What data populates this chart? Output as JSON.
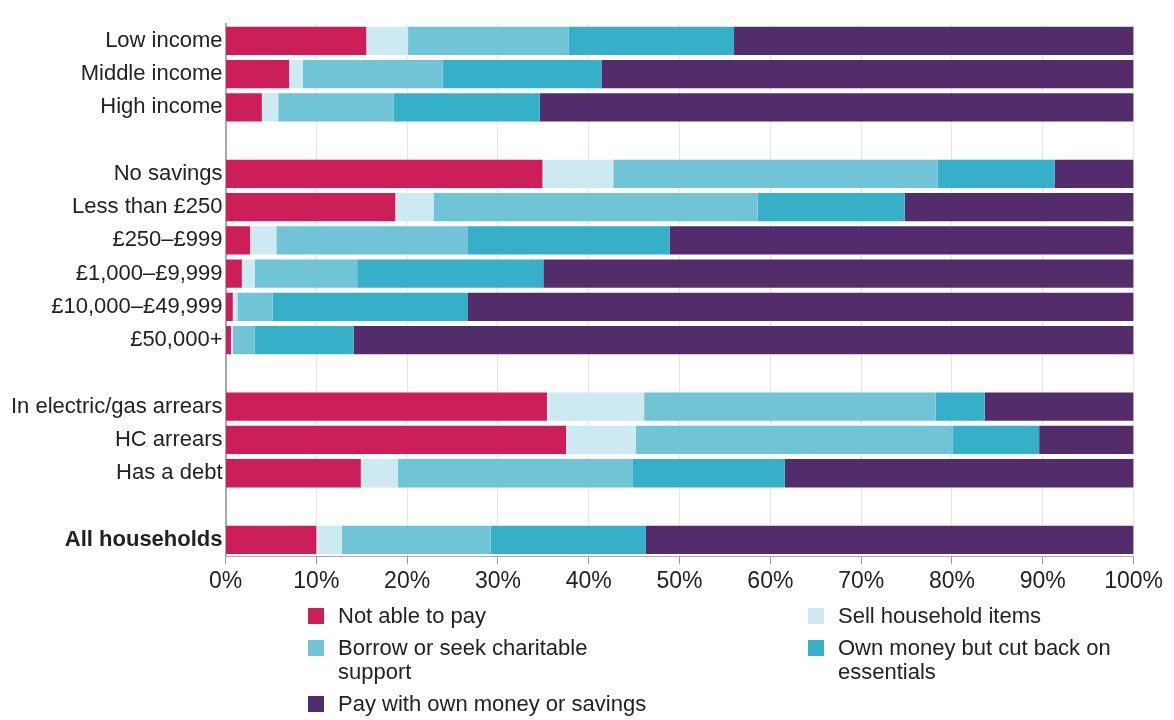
{
  "chart_data": {
    "type": "bar",
    "orientation": "horizontal",
    "stacked": true,
    "categories": [
      "Low income",
      "Middle income",
      "High income",
      null,
      "No savings",
      "Less than £250",
      "£250–£999",
      "£1,000–£9,999",
      "£10,000–£49,999",
      "£50,000+",
      null,
      "In electric/gas arrears",
      "HC arrears",
      "Has a debt",
      null,
      "All households"
    ],
    "series": [
      {
        "name": "Not able to pay",
        "color": "#cc1f5a",
        "values": [
          15.5,
          7.0,
          4.0,
          null,
          34.9,
          18.7,
          2.7,
          1.8,
          0.8,
          0.6,
          null,
          35.4,
          37.5,
          14.9,
          null,
          10.0
        ]
      },
      {
        "name": "Sell household items",
        "color": "#cde9f2",
        "values": [
          4.6,
          1.5,
          1.8,
          null,
          7.8,
          4.2,
          2.9,
          1.4,
          0.5,
          0.2,
          null,
          10.7,
          7.7,
          4.1,
          null,
          2.8
        ]
      },
      {
        "name": "Borrow or seek charitable support",
        "color": "#70c4d6",
        "values": [
          17.7,
          15.4,
          12.7,
          null,
          35.7,
          35.7,
          21.1,
          11.3,
          3.9,
          2.4,
          null,
          32.1,
          34.9,
          25.8,
          null,
          16.4
        ]
      },
      {
        "name": "Own money but cut back on essentials",
        "color": "#36b0c8",
        "values": [
          18.2,
          17.5,
          16.1,
          null,
          12.9,
          16.2,
          22.2,
          20.5,
          21.5,
          10.9,
          null,
          5.4,
          9.5,
          16.8,
          null,
          17.1
        ]
      },
      {
        "name": "Pay with own money or savings",
        "color": "#522c6b",
        "values": [
          44.0,
          58.6,
          65.4,
          null,
          8.7,
          25.2,
          51.1,
          65.0,
          73.3,
          85.9,
          null,
          16.4,
          10.4,
          38.4,
          null,
          53.7
        ]
      }
    ],
    "xlim": [
      0,
      100
    ],
    "xticks": [
      {
        "value": 0,
        "label": "0%"
      },
      {
        "value": 10,
        "label": "10%"
      },
      {
        "value": 20,
        "label": "20%"
      },
      {
        "value": 30,
        "label": "30%"
      },
      {
        "value": 40,
        "label": "40%"
      },
      {
        "value": 50,
        "label": "50%"
      },
      {
        "value": 60,
        "label": "60%"
      },
      {
        "value": 70,
        "label": "70%"
      },
      {
        "value": 80,
        "label": "80%"
      },
      {
        "value": 90,
        "label": "90%"
      },
      {
        "value": 100,
        "label": "100%"
      }
    ],
    "grid": "x",
    "legend": "bottom"
  }
}
